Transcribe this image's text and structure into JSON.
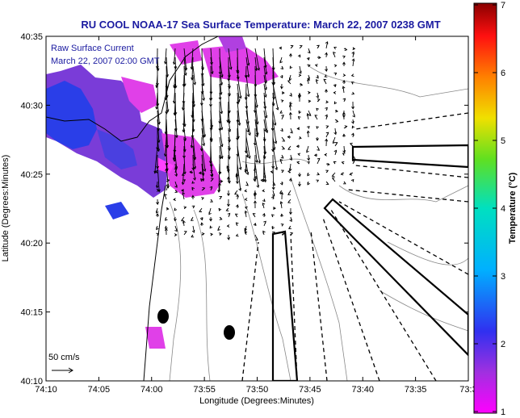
{
  "title": "RU COOL  NOAA-17  Sea Surface Temperature:  March 22, 2007 0238 GMT",
  "legend": {
    "line1": "Raw Surface Current",
    "line2": "March 22, 2007 02:00 GMT"
  },
  "scale_label": "50 cm/s",
  "axes": {
    "xlabel": "Longitude (Degrees:Minutes)",
    "ylabel": "Latitude (Degrees:Minutes)",
    "xticks": [
      "74:10",
      "74:05",
      "74:00",
      "73:55",
      "73:50",
      "73:45",
      "73:40",
      "73:35",
      "73:3"
    ],
    "yticks": [
      "40:35",
      "40:30",
      "40:25",
      "40:20",
      "40:15",
      "40:10"
    ]
  },
  "colorbar": {
    "label": "Temperature (°C)",
    "ticks": [
      "7",
      "6",
      "5",
      "4",
      "3",
      "2",
      "1"
    ],
    "range": [
      1,
      7
    ]
  },
  "colors": {
    "title": "#1a1aa0",
    "land": "#ffffff",
    "sst_blue": "#2a3ee8",
    "sst_purple": "#7a3cd8",
    "sst_magenta": "#e040e8"
  }
}
